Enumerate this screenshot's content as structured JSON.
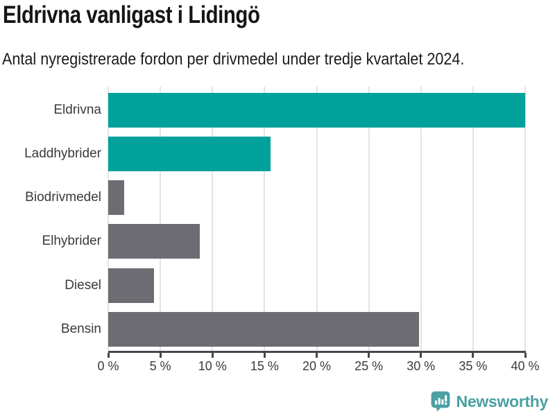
{
  "header": {
    "title": "Eldrivna vanligast i Lidingö",
    "subtitle": "Antal nyregistrerade fordon per drivmedel under tredje kvartalet 2024."
  },
  "chart_data": {
    "type": "bar",
    "orientation": "horizontal",
    "title": "Eldrivna vanligast i Lidingö",
    "subtitle": "Antal nyregistrerade fordon per drivmedel under tredje kvartalet 2024.",
    "categories": [
      "Eldrivna",
      "Laddhybrider",
      "Biodrivmedel",
      "Elhybrider",
      "Diesel",
      "Bensin"
    ],
    "values": [
      40.0,
      15.6,
      1.5,
      8.8,
      4.4,
      29.8
    ],
    "unit": "%",
    "xlabel": "",
    "ylabel": "",
    "xlim": [
      0,
      40
    ],
    "xticks": [
      0,
      5,
      10,
      15,
      20,
      25,
      30,
      35,
      40
    ],
    "xtick_labels": [
      "0 %",
      "5 %",
      "10 %",
      "15 %",
      "20 %",
      "25 %",
      "30 %",
      "35 %",
      "40 %"
    ],
    "grid": true,
    "legend": false,
    "bar_colors": [
      "#00a29b",
      "#00a29b",
      "#6d6c72",
      "#6d6c72",
      "#6d6c72",
      "#6d6c72"
    ]
  },
  "colors": {
    "accent_teal": "#00a29b",
    "neutral_gray": "#6d6c72",
    "gridline": "#e2e2e2",
    "axis": "#47474a",
    "title_text": "#151515",
    "label_text": "#3a3a3a",
    "brand_teal": "#4ba0a2"
  },
  "footer": {
    "brand": "Newsworthy"
  }
}
